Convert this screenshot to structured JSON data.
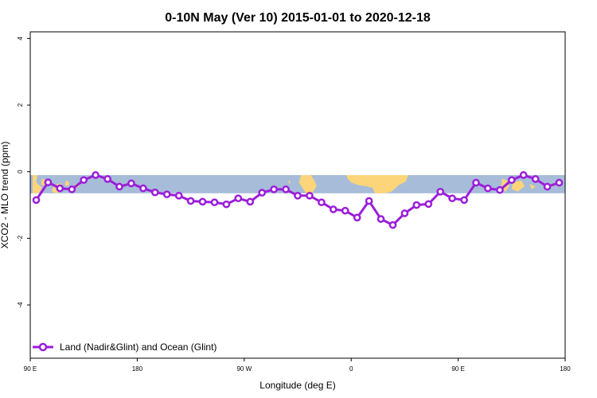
{
  "chart_data": {
    "type": "line",
    "title": "0-10N May (Ver 10)   2015-01-01 to 2020-12-18",
    "xlabel": "Longitude (deg E)",
    "ylabel": "XCO2 - MLO trend (ppm)",
    "xlim": [
      90,
      540
    ],
    "ylim": [
      -5.6,
      4.2
    ],
    "x_ticks": [
      {
        "value": 90,
        "label": "90 E"
      },
      {
        "value": 180,
        "label": "180"
      },
      {
        "value": 270,
        "label": "90 W"
      },
      {
        "value": 360,
        "label": "0"
      },
      {
        "value": 450,
        "label": "90 E"
      },
      {
        "value": 540,
        "label": "180"
      }
    ],
    "y_ticks": [
      {
        "value": 4,
        "label": "4"
      },
      {
        "value": 2,
        "label": "2"
      },
      {
        "value": 0,
        "label": "0"
      },
      {
        "value": -2,
        "label": "-2"
      },
      {
        "value": -4,
        "label": "-4"
      }
    ],
    "grid": false,
    "legend_position": "bottom-left",
    "background_band": {
      "ymin": -0.65,
      "ymax": -0.1,
      "ocean_color": "#a7bcd9",
      "land_color": "#fcd57a"
    },
    "series": [
      {
        "name": "Land (Nadir&Glint) and Ocean (Glint)",
        "color": "#9b1ed8",
        "marker": "open-circle",
        "x": [
          95,
          105,
          115,
          125,
          135,
          145,
          155,
          165,
          175,
          185,
          195,
          205,
          215,
          225,
          235,
          245,
          255,
          265,
          275,
          285,
          295,
          305,
          315,
          325,
          335,
          345,
          355,
          365,
          375,
          385,
          395,
          405,
          415,
          425,
          435,
          445,
          455,
          465,
          475,
          485,
          495,
          505,
          515,
          525,
          535
        ],
        "y": [
          -0.85,
          -0.32,
          -0.5,
          -0.53,
          -0.25,
          -0.1,
          -0.22,
          -0.45,
          -0.35,
          -0.5,
          -0.62,
          -0.68,
          -0.72,
          -0.88,
          -0.9,
          -0.92,
          -0.98,
          -0.8,
          -0.9,
          -0.63,
          -0.53,
          -0.53,
          -0.72,
          -0.72,
          -0.92,
          -1.13,
          -1.17,
          -1.38,
          -0.88,
          -1.42,
          -1.6,
          -1.25,
          -1.0,
          -0.97,
          -0.6,
          -0.8,
          -0.85,
          -0.33,
          -0.5,
          -0.55,
          -0.25,
          -0.1,
          -0.22,
          -0.45,
          -0.33
        ]
      }
    ]
  }
}
